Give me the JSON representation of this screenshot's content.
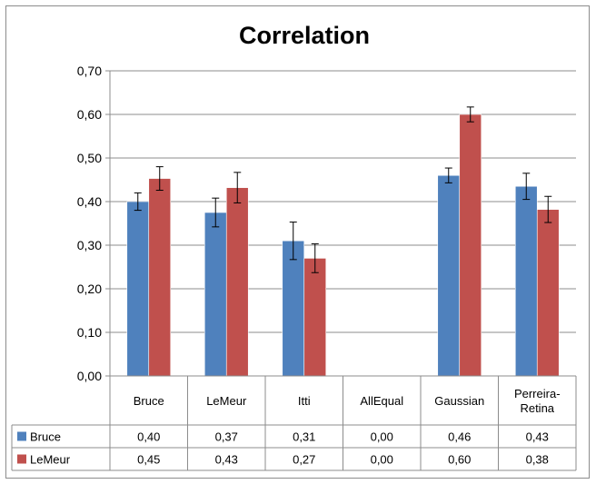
{
  "chart_data": {
    "type": "bar",
    "title": "Correlation",
    "categories": [
      "Bruce",
      "LeMeur",
      "Itti",
      "AllEqual",
      "Gaussian",
      "Perreira-Retina"
    ],
    "category_lines": [
      [
        "Bruce"
      ],
      [
        "LeMeur"
      ],
      [
        "Itti"
      ],
      [
        "AllEqual"
      ],
      [
        "Gaussian"
      ],
      [
        "Perreira-",
        "Retina"
      ]
    ],
    "series": [
      {
        "name": "Bruce",
        "color": "#4f81bd",
        "values": [
          0.4,
          0.375,
          0.31,
          0.0,
          0.46,
          0.435
        ],
        "errors": [
          0.02,
          0.033,
          0.043,
          0,
          0.017,
          0.03
        ],
        "labels": [
          "0,40",
          "0,37",
          "0,31",
          "0,00",
          "0,46",
          "0,43"
        ]
      },
      {
        "name": "LeMeur",
        "color": "#c0504d",
        "values": [
          0.453,
          0.432,
          0.27,
          0.0,
          0.6,
          0.382
        ],
        "errors": [
          0.027,
          0.035,
          0.033,
          0,
          0.017,
          0.03
        ],
        "labels": [
          "0,45",
          "0,43",
          "0,27",
          "0,00",
          "0,60",
          "0,38"
        ]
      }
    ],
    "ylim": [
      0,
      0.7
    ],
    "yticks": [
      "0,00",
      "0,10",
      "0,20",
      "0,30",
      "0,40",
      "0,50",
      "0,60",
      "0,70"
    ],
    "grid": true,
    "legend": "data-table"
  }
}
